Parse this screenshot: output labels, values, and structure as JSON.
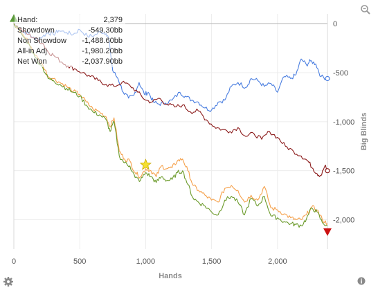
{
  "stats": {
    "rows": [
      {
        "label": "Hand:",
        "value": "2,379"
      },
      {
        "label": "Showdown",
        "value": "-549.30bb"
      },
      {
        "label": "Non Showdow",
        "value": "-1,488.60bb"
      },
      {
        "label": "All-in Adj",
        "value": "-1,980.20bb"
      },
      {
        "label": "Net Won",
        "value": "-2,037.90bb"
      }
    ]
  },
  "icons": {
    "zoom": "magnifier-icon",
    "settings": "gear-icon",
    "info": "info-icon",
    "start": "green-triangle-up",
    "end": "red-triangle-down",
    "highlight": "yellow-star"
  },
  "chart_data": {
    "type": "line",
    "xlabel": "Hands",
    "ylabel": "Big Blinds",
    "xlim": [
      0,
      2379
    ],
    "ylim": [
      -2300,
      100
    ],
    "x_ticks": [
      "0",
      "500",
      "1,000",
      "1,500",
      "2,000"
    ],
    "y_ticks": [
      "0",
      "-500",
      "-1,000",
      "-1,500",
      "-2,000"
    ],
    "y_tick_values": [
      0,
      -500,
      -1000,
      -1500,
      -2000
    ],
    "x_tick_values": [
      0,
      500,
      1000,
      1500,
      2000
    ],
    "grid": true,
    "series": [
      {
        "color": "#4a7ee0",
        "x": [
          0,
          60,
          110,
          160,
          220,
          260,
          300,
          340,
          400,
          450,
          500,
          560,
          610,
          660,
          700,
          720,
          750,
          790,
          830,
          870,
          910,
          950,
          990,
          1020,
          1060,
          1100,
          1150,
          1200,
          1260,
          1300,
          1350,
          1400,
          1450,
          1500,
          1550,
          1600,
          1650,
          1700,
          1760,
          1800,
          1850,
          1900,
          1950,
          2000,
          2050,
          2100,
          2140,
          2180,
          2220,
          2250,
          2290,
          2330,
          2379
        ],
        "y": [
          0,
          -80,
          -100,
          -160,
          -130,
          -90,
          -110,
          -70,
          -90,
          -110,
          -60,
          -130,
          -120,
          -80,
          -100,
          -150,
          -480,
          -560,
          -700,
          -760,
          -730,
          -600,
          -720,
          -700,
          -800,
          -820,
          -810,
          -780,
          -700,
          -740,
          -780,
          -800,
          -860,
          -880,
          -800,
          -780,
          -640,
          -600,
          -650,
          -560,
          -580,
          -640,
          -610,
          -700,
          -540,
          -560,
          -520,
          -360,
          -420,
          -380,
          -410,
          -540,
          -560
        ]
      },
      {
        "color": "#8b1a1a",
        "x": [
          0,
          60,
          110,
          160,
          220,
          260,
          300,
          360,
          410,
          460,
          520,
          580,
          640,
          700,
          760,
          820,
          880,
          940,
          1000,
          1050,
          1100,
          1160,
          1220,
          1280,
          1340,
          1400,
          1460,
          1520,
          1580,
          1640,
          1700,
          1760,
          1820,
          1880,
          1940,
          2000,
          2060,
          2120,
          2180,
          2230,
          2270,
          2300,
          2330,
          2360,
          2379
        ],
        "y": [
          0,
          -70,
          -110,
          -150,
          -200,
          -290,
          -320,
          -390,
          -430,
          -460,
          -500,
          -540,
          -580,
          -620,
          -640,
          -600,
          -630,
          -700,
          -780,
          -800,
          -760,
          -820,
          -850,
          -830,
          -900,
          -890,
          -980,
          -1050,
          -1080,
          -1100,
          -1060,
          -1150,
          -1120,
          -1180,
          -1100,
          -1160,
          -1250,
          -1300,
          -1350,
          -1400,
          -1480,
          -1530,
          -1550,
          -1450,
          -1500
        ]
      },
      {
        "color": "#f5a04a",
        "x": [
          0,
          60,
          110,
          160,
          220,
          260,
          300,
          350,
          400,
          450,
          500,
          550,
          600,
          650,
          700,
          730,
          760,
          800,
          840,
          880,
          920,
          960,
          1000,
          1040,
          1080,
          1120,
          1160,
          1200,
          1240,
          1280,
          1320,
          1360,
          1400,
          1450,
          1500,
          1550,
          1600,
          1650,
          1700,
          1750,
          1800,
          1850,
          1900,
          1950,
          2000,
          2050,
          2100,
          2140,
          2180,
          2220,
          2260,
          2300,
          2340,
          2379
        ],
        "y": [
          0,
          -100,
          -180,
          -320,
          -420,
          -540,
          -560,
          -600,
          -640,
          -690,
          -720,
          -800,
          -870,
          -900,
          -950,
          -1050,
          -960,
          -1300,
          -1380,
          -1400,
          -1520,
          -1560,
          -1480,
          -1500,
          -1560,
          -1450,
          -1480,
          -1470,
          -1400,
          -1380,
          -1500,
          -1650,
          -1700,
          -1750,
          -1800,
          -1820,
          -1680,
          -1650,
          -1700,
          -1820,
          -1750,
          -1800,
          -1660,
          -1880,
          -1900,
          -1940,
          -1980,
          -2000,
          -2000,
          -1950,
          -1870,
          -1900,
          -2000,
          -2040
        ]
      },
      {
        "color": "#6b9a2a",
        "x": [
          0,
          60,
          110,
          160,
          220,
          260,
          300,
          350,
          400,
          450,
          500,
          550,
          600,
          650,
          700,
          730,
          760,
          800,
          840,
          880,
          920,
          960,
          1000,
          1040,
          1080,
          1120,
          1160,
          1200,
          1240,
          1280,
          1320,
          1360,
          1400,
          1450,
          1500,
          1550,
          1600,
          1650,
          1700,
          1750,
          1800,
          1850,
          1900,
          1950,
          2000,
          2050,
          2100,
          2140,
          2180,
          2220,
          2260,
          2300,
          2340,
          2379
        ],
        "y": [
          0,
          -110,
          -200,
          -340,
          -450,
          -560,
          -580,
          -620,
          -660,
          -700,
          -740,
          -830,
          -900,
          -930,
          -980,
          -1100,
          -1000,
          -1350,
          -1420,
          -1450,
          -1570,
          -1600,
          -1520,
          -1560,
          -1620,
          -1560,
          -1600,
          -1590,
          -1520,
          -1500,
          -1640,
          -1780,
          -1820,
          -1860,
          -1920,
          -1950,
          -1800,
          -1760,
          -1820,
          -1950,
          -1780,
          -1860,
          -1760,
          -1960,
          -1980,
          -2020,
          -2040,
          -2050,
          -2060,
          -1990,
          -1880,
          -1920,
          -2030,
          -2060
        ]
      }
    ],
    "markers": [
      {
        "type": "start",
        "x": 0,
        "y": 60,
        "color": "#5a9a3a"
      },
      {
        "type": "star",
        "x": 1000,
        "y": -1440,
        "color": "#f5e030"
      },
      {
        "type": "end",
        "x": 2379,
        "y": -2130,
        "color": "#cc1111"
      }
    ]
  }
}
